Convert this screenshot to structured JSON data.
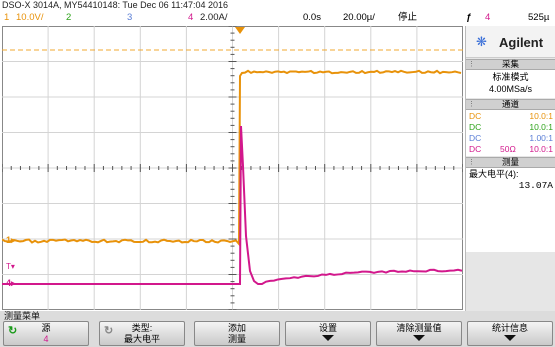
{
  "title_bar": "DSO-X 3014A, MY54410148: Tue Dec 06 11:47:04 2016",
  "status": {
    "ch1_num": "1",
    "ch1_scale": "10.0V/",
    "ch2_num": "2",
    "ch3_num": "3",
    "ch4_num": "4",
    "ch4_scale": "2.00A/",
    "time_delay": "0.0s",
    "time_scale": "20.00µ/",
    "run_state": "停止",
    "trig_icon": "ƒ",
    "trig_channel": "4",
    "trig_level": "525µ"
  },
  "colors": {
    "ch1": "#e8920a",
    "ch2": "#2ea31b",
    "ch3": "#5a7ed6",
    "ch4": "#d2188c"
  },
  "markers": {
    "ch1_ground": "1",
    "trigger_marker": "T",
    "ch4_ground": "4"
  },
  "side_panel": {
    "brand": "Agilent",
    "brand_icon": "agilent-spark-icon",
    "acquire_header": "采集",
    "acquire_mode": "标准模式",
    "acquire_rate": "4.00MSa/s",
    "channels_header": "通道",
    "channels": [
      {
        "coupling": "DC",
        "imp": "",
        "ratio": "10.0:1",
        "color": "#e8920a"
      },
      {
        "coupling": "DC",
        "imp": "",
        "ratio": "10.0:1",
        "color": "#2ea31b"
      },
      {
        "coupling": "DC",
        "imp": "",
        "ratio": "1.00:1",
        "color": "#5a7ed6"
      },
      {
        "coupling": "DC",
        "imp": "50Ω",
        "ratio": "10.0:1",
        "color": "#d2188c"
      }
    ],
    "measure_header": "测量",
    "measure_label": "最大电平(4):",
    "measure_value": "13.07A"
  },
  "menu": {
    "title": "测量菜单",
    "buttons": [
      {
        "l1": "源",
        "l2": "4"
      },
      {
        "l1": "类型:",
        "l2": "最大电平"
      },
      {
        "l1": "添加",
        "l2": "测量"
      },
      {
        "l1": "设置",
        "l2": ""
      },
      {
        "l1": "清除测量值",
        "l2": ""
      },
      {
        "l1": "统计信息",
        "l2": ""
      }
    ]
  }
}
